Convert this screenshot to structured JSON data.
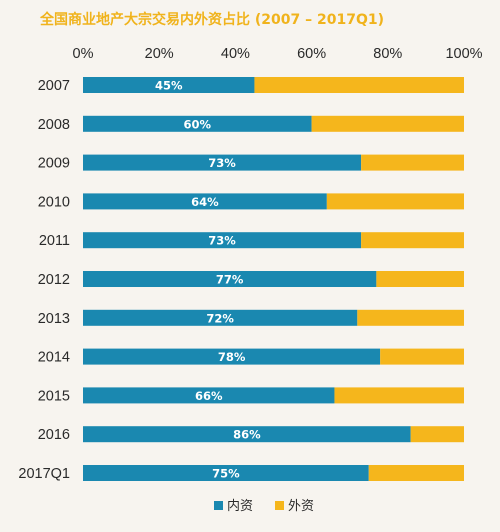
{
  "chart_data": {
    "type": "bar",
    "orientation": "horizontal",
    "stacked": true,
    "title": "全国商业地产大宗交易内外资占比 (2007 – 2017Q1)",
    "categories": [
      "2007",
      "2008",
      "2009",
      "2010",
      "2011",
      "2012",
      "2013",
      "2014",
      "2015",
      "2016",
      "2017Q1"
    ],
    "series": [
      {
        "name": "内资",
        "color": "#1a88b0",
        "values": [
          45,
          60,
          73,
          64,
          73,
          77,
          72,
          78,
          66,
          86,
          75
        ]
      },
      {
        "name": "外资",
        "color": "#f5b61c",
        "values": [
          55,
          40,
          27,
          36,
          27,
          23,
          28,
          22,
          34,
          14,
          25
        ]
      }
    ],
    "data_labels": [
      "45%",
      "60%",
      "73%",
      "64%",
      "73%",
      "77%",
      "72%",
      "78%",
      "66%",
      "86%",
      "75%"
    ],
    "xlim": [
      0,
      100
    ],
    "xticks": [
      "0%",
      "20%",
      "40%",
      "60%",
      "80%",
      "100%"
    ],
    "legend": "bottom",
    "grid": false
  }
}
